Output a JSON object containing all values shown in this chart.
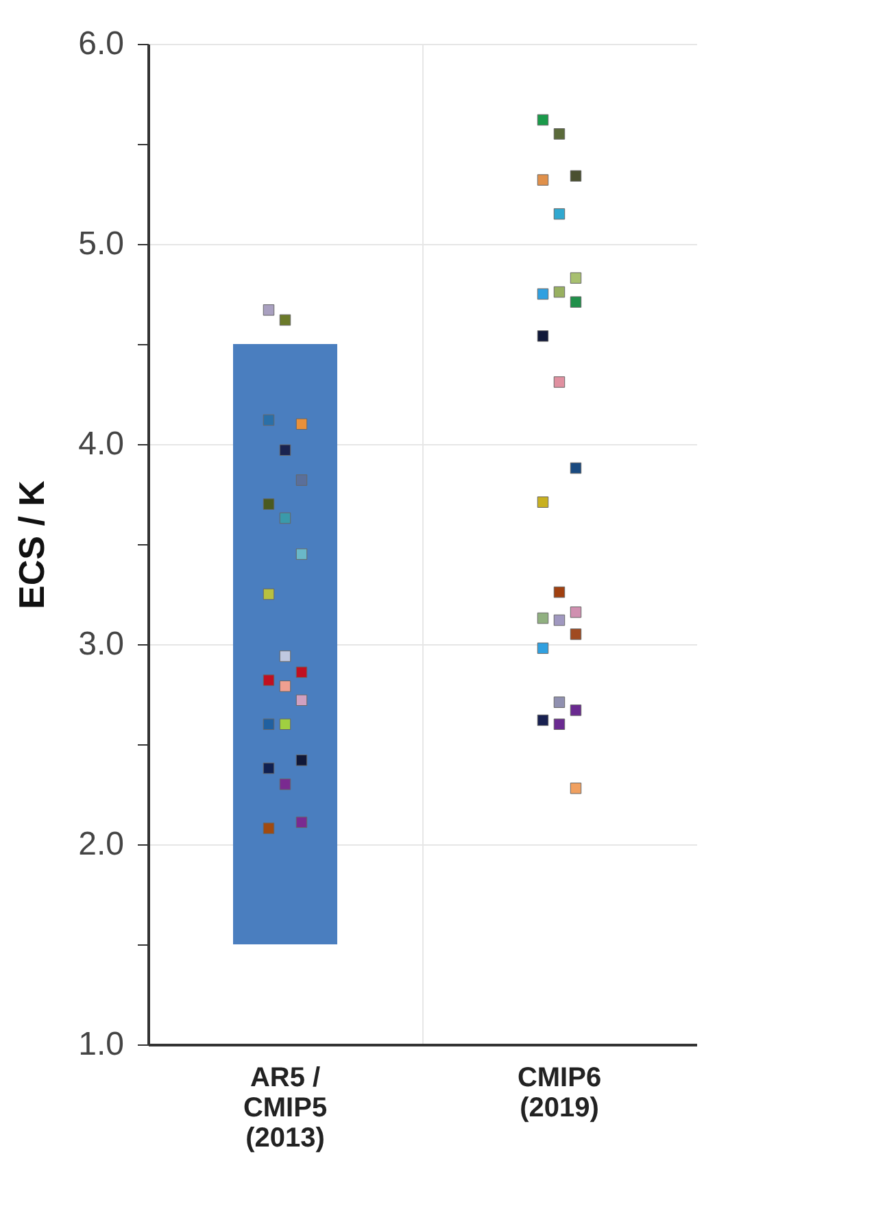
{
  "chart_data": {
    "type": "scatter",
    "ylabel": "ECS / K",
    "categories": [
      "AR5 / CMIP5 (2013)",
      "CMIP6 (2019)"
    ],
    "ylim": [
      1,
      6
    ],
    "yticks": [
      {
        "value": 1,
        "label": "1.0"
      },
      {
        "value": 1.5,
        "label": null
      },
      {
        "value": 2,
        "label": "2.0"
      },
      {
        "value": 2.5,
        "label": null
      },
      {
        "value": 3,
        "label": "3.0"
      },
      {
        "value": 3.5,
        "label": null
      },
      {
        "value": 4,
        "label": "4.0"
      },
      {
        "value": 4.5,
        "label": null
      },
      {
        "value": 5,
        "label": "5.0"
      },
      {
        "value": 5.5,
        "label": null
      },
      {
        "value": 6,
        "label": "6.0"
      }
    ],
    "grid": true,
    "marker": "square",
    "series": [
      {
        "type": "bar",
        "color": "#4a7ebf",
        "values": [
          3.0,
          null
        ],
        "base": [
          1.5,
          null
        ]
      },
      {
        "x": [
          "AR5 / CMIP5 (2013)",
          "AR5 / CMIP5 (2013)",
          "AR5 / CMIP5 (2013)",
          "AR5 / CMIP5 (2013)",
          "AR5 / CMIP5 (2013)",
          "AR5 / CMIP5 (2013)",
          "AR5 / CMIP5 (2013)",
          "AR5 / CMIP5 (2013)",
          "AR5 / CMIP5 (2013)",
          "AR5 / CMIP5 (2013)",
          "AR5 / CMIP5 (2013)",
          "AR5 / CMIP5 (2013)",
          "AR5 / CMIP5 (2013)",
          "AR5 / CMIP5 (2013)",
          "AR5 / CMIP5 (2013)",
          "AR5 / CMIP5 (2013)",
          "AR5 / CMIP5 (2013)",
          "AR5 / CMIP5 (2013)",
          "AR5 / CMIP5 (2013)",
          "AR5 / CMIP5 (2013)",
          "AR5 / CMIP5 (2013)",
          "AR5 / CMIP5 (2013)"
        ],
        "values": [
          4.67,
          4.62,
          4.1,
          4.12,
          3.97,
          3.82,
          3.7,
          3.63,
          3.45,
          3.25,
          2.94,
          2.86,
          2.82,
          2.79,
          2.72,
          2.6,
          2.6,
          2.42,
          2.38,
          2.3,
          2.11,
          2.08
        ],
        "colors": [
          "#a9a0c0",
          "#6b7a2a",
          "#e8903a",
          "#2a6fa8",
          "#1a2350",
          "#5a6f9a",
          "#4a5a20",
          "#3a9aaa",
          "#6ab8c8",
          "#b8c040",
          "#c0c8e0",
          "#c01020",
          "#c01020",
          "#f0a090",
          "#d0a0c0",
          "#2060a0",
          "#a0d040",
          "#101838",
          "#102050",
          "#7a2a90",
          "#7a2a90",
          "#a04a10"
        ]
      },
      {
        "x": [
          "CMIP6 (2019)",
          "CMIP6 (2019)",
          "CMIP6 (2019)",
          "CMIP6 (2019)",
          "CMIP6 (2019)",
          "CMIP6 (2019)",
          "CMIP6 (2019)",
          "CMIP6 (2019)",
          "CMIP6 (2019)",
          "CMIP6 (2019)",
          "CMIP6 (2019)",
          "CMIP6 (2019)",
          "CMIP6 (2019)",
          "CMIP6 (2019)",
          "CMIP6 (2019)",
          "CMIP6 (2019)",
          "CMIP6 (2019)",
          "CMIP6 (2019)",
          "CMIP6 (2019)",
          "CMIP6 (2019)",
          "CMIP6 (2019)",
          "CMIP6 (2019)",
          "CMIP6 (2019)",
          "CMIP6 (2019)"
        ],
        "values": [
          5.62,
          5.55,
          5.34,
          5.32,
          5.15,
          4.83,
          4.75,
          4.76,
          4.71,
          4.54,
          4.31,
          3.88,
          3.71,
          3.26,
          3.16,
          3.13,
          3.12,
          3.05,
          2.98,
          2.71,
          2.67,
          2.62,
          2.6,
          2.28
        ],
        "colors": [
          "#1a9a4a",
          "#5a6a3a",
          "#4a5030",
          "#e0904a",
          "#30a8d0",
          "#a8c070",
          "#30a0e0",
          "#98b060",
          "#20904a",
          "#101838",
          "#e090a0",
          "#1a4a80",
          "#c8b020",
          "#a04010",
          "#d090b0",
          "#90b080",
          "#a098c0",
          "#a04a20",
          "#30a0e0",
          "#9090b0",
          "#6a2a90",
          "#182050",
          "#6a2a90",
          "#f0a060"
        ]
      }
    ]
  }
}
